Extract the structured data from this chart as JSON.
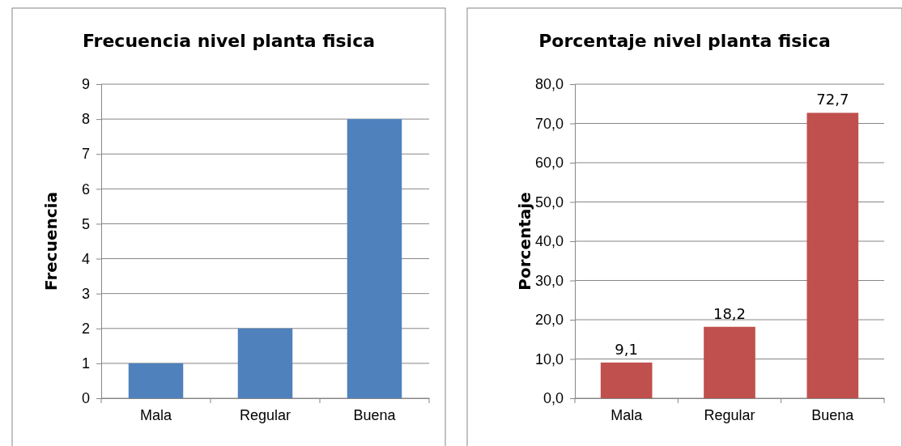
{
  "chart_data": [
    {
      "type": "bar",
      "title": "Frecuencia nivel planta fisica",
      "ylabel": "Frecuencia",
      "categories": [
        "Mala",
        "Regular",
        "Buena"
      ],
      "values": [
        1,
        2,
        8
      ],
      "color": "#4f81bd",
      "ylim": [
        0,
        9
      ],
      "yticks": [
        0,
        1,
        2,
        3,
        4,
        5,
        6,
        7,
        8,
        9
      ],
      "grid": "y"
    },
    {
      "type": "bar",
      "title": "Porcentaje nivel planta fisica",
      "ylabel": "Porcentaje",
      "categories": [
        "Mala",
        "Regular",
        "Buena"
      ],
      "values": [
        9.1,
        18.2,
        72.7
      ],
      "value_labels": [
        "9,1",
        "18,2",
        "72,7"
      ],
      "color": "#c0504d",
      "ylim": [
        0,
        80
      ],
      "yticks": [
        {
          "value": 0,
          "label": "0,0"
        },
        {
          "value": 10,
          "label": "10,0"
        },
        {
          "value": 20,
          "label": "20,0"
        },
        {
          "value": 30,
          "label": "30,0"
        },
        {
          "value": 40,
          "label": "40,0"
        },
        {
          "value": 50,
          "label": "50,0"
        },
        {
          "value": 60,
          "label": "60,0"
        },
        {
          "value": 70,
          "label": "70,0"
        },
        {
          "value": 80,
          "label": "80,0"
        }
      ],
      "grid": "y"
    }
  ]
}
